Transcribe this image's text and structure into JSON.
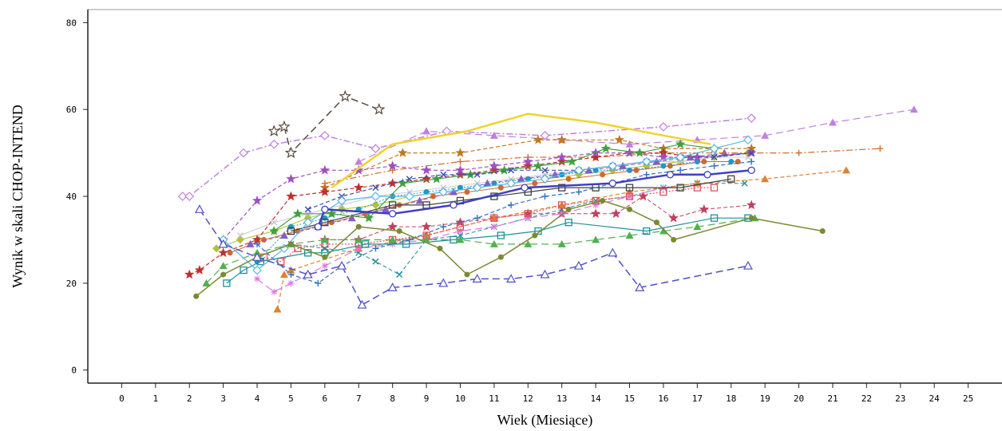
{
  "chart_data": {
    "type": "line",
    "xlabel": "Wiek (Miesiące)",
    "ylabel": "Wynik w skali CHOP-INTEND",
    "xlim": [
      -1,
      26
    ],
    "ylim": [
      -3,
      83
    ],
    "xticks": [
      0,
      1,
      2,
      3,
      4,
      5,
      6,
      7,
      8,
      9,
      10,
      11,
      12,
      13,
      14,
      15,
      16,
      17,
      18,
      19,
      20,
      21,
      22,
      23,
      24,
      25
    ],
    "yticks": [
      0,
      20,
      40,
      60,
      80
    ],
    "grid": false,
    "legend": "none",
    "series": [
      {
        "color": "#f2d22e",
        "marker": "none",
        "dash": "solid",
        "width": 2.5,
        "x": [
          6.2,
          8.0,
          10.2,
          12.0,
          14.0,
          16.0,
          17.4
        ],
        "y": [
          42,
          52,
          55,
          59,
          57,
          54,
          52
        ]
      },
      {
        "color": "#4040c0",
        "marker": "circle-open",
        "dash": "solid",
        "width": 2.5,
        "x": [
          5.8,
          6.0,
          8.0,
          9.8,
          11.9,
          14.5,
          16.2,
          17.3,
          18.6
        ],
        "y": [
          33,
          37,
          36,
          38,
          42,
          43,
          45,
          45,
          46
        ]
      },
      {
        "color": "#5a4a3a",
        "marker": "star-open",
        "dash": "long",
        "width": 1.5,
        "x": [
          4.5,
          4.8,
          5.0,
          6.6,
          7.6
        ],
        "y": [
          55,
          56,
          50,
          63,
          60
        ]
      },
      {
        "color": "#c080e0",
        "marker": "diamond-open",
        "dash": "dashdot",
        "width": 1.5,
        "x": [
          1.8,
          2.0,
          3.6,
          4.5,
          6.0,
          7.5,
          9.6,
          12.5,
          16.0,
          18.6
        ],
        "y": [
          40,
          40,
          50,
          52,
          54,
          51,
          55,
          54,
          56,
          58
        ]
      },
      {
        "color": "#c080e0",
        "marker": "triangle-up",
        "dash": "long",
        "width": 1.2,
        "x": [
          7.0,
          9.0,
          11.0,
          13.0,
          15.0,
          17.0,
          19.0,
          21.0,
          23.4
        ],
        "y": [
          48,
          55,
          54,
          53,
          52,
          53,
          54,
          57,
          60
        ]
      },
      {
        "color": "#d07030",
        "marker": "plus",
        "dash": "dashdot",
        "width": 1.2,
        "x": [
          6.0,
          8.0,
          10.0,
          12.0,
          14.0,
          16.0,
          18.5,
          20.0,
          22.4
        ],
        "y": [
          43,
          46,
          48,
          49,
          49,
          50,
          50,
          50,
          51
        ]
      },
      {
        "color": "#e08030",
        "marker": "triangle-up",
        "dash": "dash",
        "width": 1.2,
        "x": [
          4.6,
          4.8,
          5.0,
          7.0,
          9.0,
          11.0,
          13.0,
          15.0,
          17.0,
          19.0,
          21.4
        ],
        "y": [
          14,
          22,
          23,
          28,
          31,
          35,
          38,
          41,
          43,
          44,
          46
        ]
      },
      {
        "color": "#c07a20",
        "marker": "star",
        "dash": "dash",
        "width": 1.2,
        "x": [
          6.0,
          8.3,
          10.0,
          12.3,
          13.0,
          14.7,
          16.0,
          18.6
        ],
        "y": [
          42,
          50,
          50,
          53,
          53,
          53,
          51,
          51
        ]
      },
      {
        "color": "#7a8a30",
        "marker": "circle",
        "dash": "solid",
        "width": 1.5,
        "x": [
          2.2,
          3.0,
          4.0,
          5.0,
          6.0,
          7.0,
          8.2,
          9.4,
          10.2,
          11.2,
          12.2,
          13.2,
          14.2,
          15.0,
          15.8,
          16.3,
          18.6,
          20.7
        ],
        "y": [
          17,
          22,
          26,
          29,
          26,
          33,
          32,
          28,
          22,
          26,
          31,
          37,
          39,
          37,
          34,
          30,
          35,
          32
        ]
      },
      {
        "color": "#5050c8",
        "marker": "triangle-open",
        "dash": "long",
        "width": 1.5,
        "x": [
          2.3,
          3.0,
          4.0,
          5.5,
          6.5,
          7.1,
          8.0,
          9.5,
          10.5,
          11.5,
          12.5,
          13.5,
          14.5,
          15.3,
          18.5
        ],
        "y": [
          37,
          29,
          26,
          22,
          24,
          15,
          19,
          20,
          21,
          21,
          22,
          24,
          27,
          19,
          24
        ]
      },
      {
        "color": "#e078e0",
        "marker": "cross",
        "dash": "long",
        "width": 1.2,
        "x": [
          4.0,
          4.5,
          5.0,
          5.5,
          6.0,
          7.0,
          8.0,
          9.0,
          10.0,
          11.0,
          12.0,
          13.0,
          14.0,
          15.0,
          16.0
        ],
        "y": [
          21,
          18,
          20,
          22,
          24,
          28,
          29,
          30,
          32,
          33,
          35,
          36,
          38,
          40,
          42
        ]
      },
      {
        "color": "#c03030",
        "marker": "star",
        "dash": "dash",
        "width": 1.2,
        "x": [
          2.0,
          2.3,
          3.0,
          4.0,
          5.0,
          6.0,
          7.0,
          8.0,
          9.0,
          10.0,
          11.0,
          12.0,
          13.0,
          14.0,
          15.0,
          16.0,
          17.0,
          18.6
        ],
        "y": [
          22,
          23,
          27,
          30,
          40,
          41,
          42,
          43,
          44,
          45,
          46,
          47,
          48,
          49,
          50,
          50,
          49,
          50
        ]
      },
      {
        "color": "#a050c0",
        "marker": "star",
        "dash": "dash",
        "width": 1.2,
        "x": [
          3.0,
          4.0,
          5.0,
          6.0,
          7.0,
          8.0,
          9.0,
          10.0,
          11.0,
          12.0,
          13.0,
          14.0,
          15.0,
          16.0,
          17.0,
          18.6
        ],
        "y": [
          30,
          39,
          44,
          46,
          46,
          47,
          46,
          46,
          47,
          48,
          49,
          50,
          50,
          49,
          49,
          50
        ]
      },
      {
        "color": "#e05060",
        "marker": "square-open",
        "dash": "dot",
        "width": 1.2,
        "x": [
          4.2,
          4.7,
          5.2,
          6.0,
          7.0,
          8.0,
          9.0,
          10.0,
          11.0,
          12.0,
          13.0,
          14.0,
          15.0,
          16.0,
          17.0,
          17.5
        ],
        "y": [
          26,
          25,
          28,
          29,
          29,
          30,
          31,
          33,
          35,
          36,
          38,
          39,
          40,
          41,
          42,
          42
        ]
      },
      {
        "color": "#404040",
        "marker": "square-open",
        "dash": "solid",
        "width": 1.2,
        "x": [
          5.0,
          6.0,
          8.0,
          9.0,
          10.0,
          11.0,
          12.0,
          13.0,
          14.0,
          15.0,
          16.5,
          18.0
        ],
        "y": [
          32,
          34,
          38,
          38,
          39,
          40,
          41,
          42,
          42,
          42,
          42,
          44
        ]
      },
      {
        "color": "#209098",
        "marker": "square-open",
        "dash": "solid",
        "width": 1.2,
        "x": [
          3.1,
          3.6,
          4.1,
          5.5,
          6.0,
          7.2,
          8.4,
          9.8,
          11.2,
          12.3,
          13.2,
          15.5,
          17.5,
          18.5
        ],
        "y": [
          20,
          23,
          25,
          27,
          27,
          29,
          29,
          30,
          31,
          32,
          34,
          32,
          35,
          35
        ]
      },
      {
        "color": "#209098",
        "marker": "x",
        "dash": "dash",
        "width": 1.0,
        "x": [
          5.0,
          6.0,
          7.0,
          7.5,
          8.2,
          9.0,
          10.0,
          11.0,
          12.0,
          13.0,
          14.0,
          15.0,
          16.0,
          17.0,
          18.4
        ],
        "y": [
          29,
          28,
          27,
          25,
          22,
          30,
          31,
          33,
          35,
          37,
          39,
          40,
          42,
          43,
          43
        ]
      },
      {
        "color": "#50b050",
        "marker": "triangle-up",
        "dash": "long",
        "width": 1.2,
        "x": [
          2.5,
          3.0,
          4.0,
          5.0,
          6.0,
          7.0,
          8.0,
          9.0,
          10.0,
          11.0,
          12.0,
          13.0,
          14.0,
          15.0,
          16.0,
          17.0,
          18.7
        ],
        "y": [
          20,
          24,
          27,
          29,
          30,
          30,
          30,
          30,
          30,
          29,
          29,
          29,
          30,
          31,
          32,
          33,
          35
        ]
      },
      {
        "color": "#40a040",
        "marker": "star",
        "dash": "solid",
        "width": 1.2,
        "x": [
          4.5,
          5.2,
          6.2,
          7.3,
          8.3,
          9.3,
          10.3,
          11.3,
          12.3,
          13.3,
          14.3,
          15.3,
          16.5,
          17.5
        ],
        "y": [
          32,
          36,
          36,
          35,
          43,
          44,
          45,
          46,
          47,
          48,
          51,
          50,
          52,
          51
        ]
      },
      {
        "color": "#3070c0",
        "marker": "plus",
        "dash": "dash",
        "width": 1.2,
        "x": [
          4.0,
          5.0,
          5.8,
          6.5,
          7.5,
          8.5,
          9.5,
          10.5,
          11.5,
          12.5,
          13.5,
          14.5,
          15.5,
          16.5,
          17.5,
          18.6
        ],
        "y": [
          29,
          22,
          20,
          24,
          28,
          30,
          33,
          35,
          38,
          40,
          41,
          43,
          45,
          46,
          47,
          48
        ]
      },
      {
        "color": "#3a50b0",
        "marker": "x",
        "dash": "dash",
        "width": 1.2,
        "x": [
          5.5,
          6.5,
          7.5,
          8.5,
          9.5,
          10.5,
          11.5,
          12.5,
          13.5,
          14.5,
          15.5,
          16.5,
          17.5,
          18.6
        ],
        "y": [
          37,
          40,
          42,
          44,
          45,
          45,
          46,
          46,
          46,
          47,
          48,
          49,
          49,
          50
        ]
      },
      {
        "color": "#58b8e8",
        "marker": "diamond-open",
        "dash": "solid",
        "width": 1.2,
        "x": [
          3.0,
          4.0,
          4.8,
          5.5,
          6.5,
          7.5,
          8.5,
          9.5,
          10.5,
          11.5,
          12.5,
          13.5,
          14.5,
          15.5,
          16.5,
          17.5,
          18.5
        ],
        "y": [
          30,
          23,
          28,
          34,
          39,
          40,
          40,
          41,
          42,
          43,
          44,
          46,
          47,
          48,
          49,
          51,
          53
        ]
      },
      {
        "color": "#b0c040",
        "marker": "diamond",
        "dash": "solid",
        "width": 1.0,
        "x": [
          2.8,
          3.5,
          4.5,
          5.5,
          6.5,
          7.5,
          8.5,
          9.5,
          10.5,
          11.5,
          12.5,
          13.5,
          14.5,
          15.5,
          16.5,
          17.5,
          18.5
        ],
        "y": [
          28,
          30,
          32,
          35,
          37,
          38,
          40,
          41,
          42,
          43,
          44,
          45,
          46,
          47,
          48,
          49,
          50
        ]
      },
      {
        "color": "#c8c8c8",
        "marker": "x",
        "dash": "solid",
        "width": 1.0,
        "x": [
          3.5,
          4.5,
          5.5,
          6.5,
          7.5,
          8.5,
          9.5,
          10.5,
          11.5,
          12.5,
          13.5,
          14.5,
          15.5,
          16.5,
          17.5,
          18.5
        ],
        "y": [
          31,
          34,
          36,
          38,
          40,
          41,
          42,
          43,
          44,
          45,
          46,
          47,
          48,
          48,
          49,
          49
        ]
      },
      {
        "color": "#c04060",
        "marker": "star",
        "dash": "dash",
        "width": 1.0,
        "x": [
          6.0,
          7.0,
          8.0,
          9.0,
          10.0,
          11.0,
          12.0,
          13.0,
          14.0,
          14.6,
          15.4,
          16.3,
          17.2,
          18.6
        ],
        "y": [
          30,
          30,
          33,
          33,
          34,
          35,
          36,
          36,
          36,
          36,
          40,
          35,
          37,
          38
        ]
      },
      {
        "color": "#d06a30",
        "marker": "circle",
        "dash": "solid",
        "width": 1.0,
        "x": [
          3.2,
          4.2,
          5.2,
          6.2,
          7.2,
          8.2,
          9.2,
          10.2,
          11.2,
          12.2,
          13.2,
          14.2,
          15.2,
          16.2,
          17.2,
          18.2
        ],
        "y": [
          27,
          30,
          32,
          34,
          36,
          38,
          40,
          41,
          42,
          43,
          44,
          45,
          46,
          47,
          48,
          48
        ]
      },
      {
        "color": "#2098c0",
        "marker": "circle",
        "dash": "dot",
        "width": 1.0,
        "x": [
          4.0,
          5.0,
          6.0,
          7.0,
          8.0,
          9.0,
          10.0,
          11.0,
          12.0,
          13.0,
          14.0,
          15.0,
          16.0,
          17.0,
          18.0
        ],
        "y": [
          25,
          33,
          35,
          37,
          40,
          41,
          42,
          43,
          44,
          45,
          46,
          46,
          47,
          48,
          48
        ]
      },
      {
        "color": "#8060c0",
        "marker": "triangle-up",
        "dash": "dash",
        "width": 1.0,
        "x": [
          3.8,
          4.8,
          5.8,
          6.8,
          7.8,
          8.8,
          9.8,
          10.8,
          11.8,
          12.8,
          13.8,
          14.8,
          15.8,
          16.8,
          17.8
        ],
        "y": [
          29,
          31,
          33,
          35,
          37,
          39,
          41,
          43,
          44,
          45,
          46,
          47,
          48,
          49,
          50
        ]
      }
    ]
  }
}
